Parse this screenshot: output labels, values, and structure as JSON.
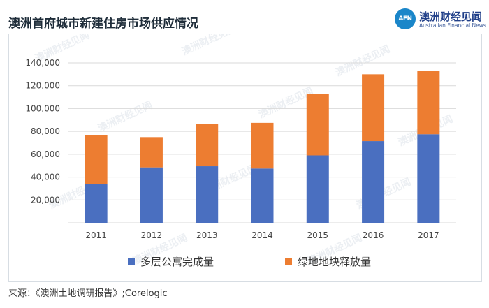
{
  "header": {
    "title": "澳洲首府城市新建住房市场供应情况",
    "logo_badge": "AFN",
    "logo_cn": "澳洲财经见闻",
    "logo_en": "Australian Financial News"
  },
  "source": "来源：《澳洲土地调研报告》;Corelogic",
  "colors": {
    "series1": "#4a6fc0",
    "series2": "#ed7d31",
    "grid": "#d9d9d9"
  },
  "chart_data": {
    "type": "bar",
    "stacked": true,
    "title": "澳洲首府城市新建住房市场供应情况",
    "categories": [
      "2011",
      "2012",
      "2013",
      "2014",
      "2015",
      "2016",
      "2017"
    ],
    "series": [
      {
        "name": "多层公寓完成量",
        "values": [
          34000,
          48500,
          49500,
          47500,
          59000,
          71500,
          77500
        ]
      },
      {
        "name": "绿地地块释放量",
        "values": [
          43000,
          26500,
          37000,
          40000,
          54000,
          58500,
          55500
        ]
      }
    ],
    "ylim": [
      0,
      140000
    ],
    "yticks": [
      "-",
      "20,000",
      "40,000",
      "60,000",
      "80,000",
      "100,000",
      "120,000",
      "140,000"
    ],
    "grid": true,
    "legend_position": "bottom"
  }
}
